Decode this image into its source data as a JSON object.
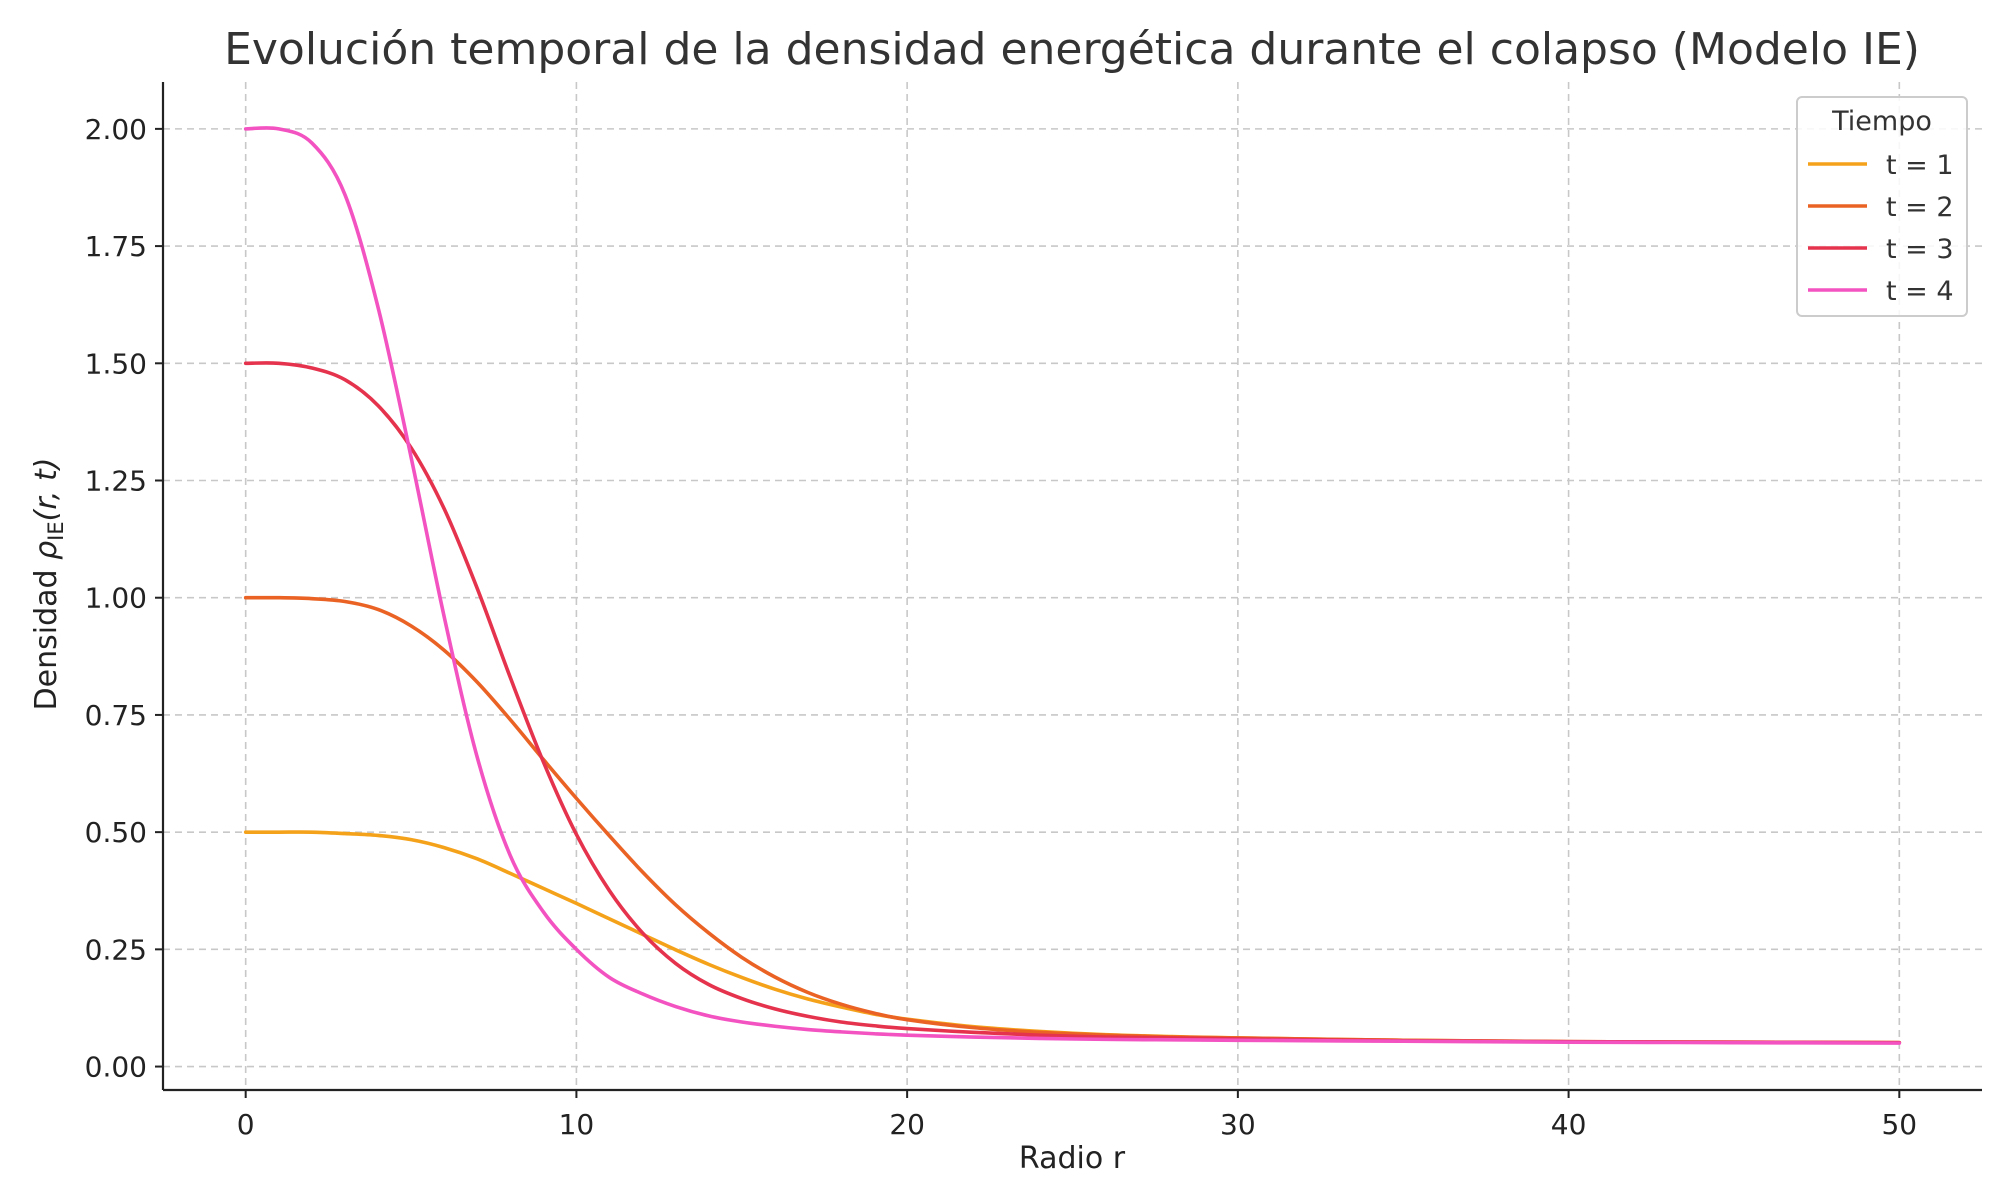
{
  "chart_data": {
    "type": "line",
    "title": "Evolución temporal de la densidad energética durante el colapso (Modelo IE)",
    "xlabel": "Radio r",
    "ylabel_prefix": "Densidad ",
    "ylabel_symbol": "ρ",
    "ylabel_subscript": "IE",
    "ylabel_args": "(r, t)",
    "xlim": [
      -2.5,
      52.5
    ],
    "ylim": [
      -0.05,
      2.1
    ],
    "x_ticks": [
      0,
      10,
      20,
      30,
      40,
      50
    ],
    "x_tick_labels": [
      "0",
      "10",
      "20",
      "30",
      "40",
      "50"
    ],
    "y_ticks": [
      0,
      0.25,
      0.5,
      0.75,
      1.0,
      1.25,
      1.5,
      1.75,
      2.0
    ],
    "y_tick_labels": [
      "0.00",
      "0.25",
      "0.50",
      "0.75",
      "1.00",
      "1.25",
      "1.50",
      "1.75",
      "2.00"
    ],
    "grid": true,
    "legend": {
      "title": "Tiempo",
      "placement": "top-right"
    },
    "x": [
      0,
      1,
      2,
      3,
      4,
      5,
      6,
      7,
      8,
      9,
      10,
      11,
      12,
      13,
      14,
      15,
      16,
      17,
      18,
      19,
      20,
      22,
      24,
      26,
      28,
      30,
      35,
      40,
      45,
      50
    ],
    "series": [
      {
        "name": "t = 1",
        "color": "#f5a21b",
        "values": [
          0.5,
          0.5,
          0.5,
          0.497,
          0.493,
          0.484,
          0.467,
          0.443,
          0.412,
          0.38,
          0.348,
          0.315,
          0.282,
          0.249,
          0.218,
          0.19,
          0.165,
          0.144,
          0.127,
          0.112,
          0.101,
          0.085,
          0.075,
          0.068,
          0.064,
          0.061,
          0.056,
          0.053,
          0.052,
          0.051
        ]
      },
      {
        "name": "t = 2",
        "color": "#ea6324",
        "values": [
          1.0,
          1.0,
          0.998,
          0.992,
          0.975,
          0.94,
          0.888,
          0.82,
          0.74,
          0.655,
          0.572,
          0.492,
          0.415,
          0.345,
          0.285,
          0.233,
          0.191,
          0.158,
          0.133,
          0.114,
          0.1,
          0.083,
          0.073,
          0.067,
          0.063,
          0.061,
          0.056,
          0.053,
          0.052,
          0.051
        ]
      },
      {
        "name": "t = 3",
        "color": "#e5334d",
        "values": [
          1.5,
          1.5,
          1.49,
          1.465,
          1.41,
          1.32,
          1.19,
          1.02,
          0.83,
          0.65,
          0.495,
          0.375,
          0.285,
          0.22,
          0.175,
          0.145,
          0.123,
          0.107,
          0.095,
          0.087,
          0.081,
          0.073,
          0.067,
          0.063,
          0.061,
          0.059,
          0.055,
          0.053,
          0.052,
          0.051
        ]
      },
      {
        "name": "t = 4",
        "color": "#f352c1",
        "values": [
          2.0,
          2.0,
          1.97,
          1.86,
          1.62,
          1.3,
          0.96,
          0.66,
          0.45,
          0.33,
          0.25,
          0.19,
          0.155,
          0.128,
          0.108,
          0.095,
          0.086,
          0.079,
          0.074,
          0.07,
          0.067,
          0.063,
          0.06,
          0.058,
          0.057,
          0.056,
          0.054,
          0.052,
          0.051,
          0.05
        ]
      }
    ]
  }
}
